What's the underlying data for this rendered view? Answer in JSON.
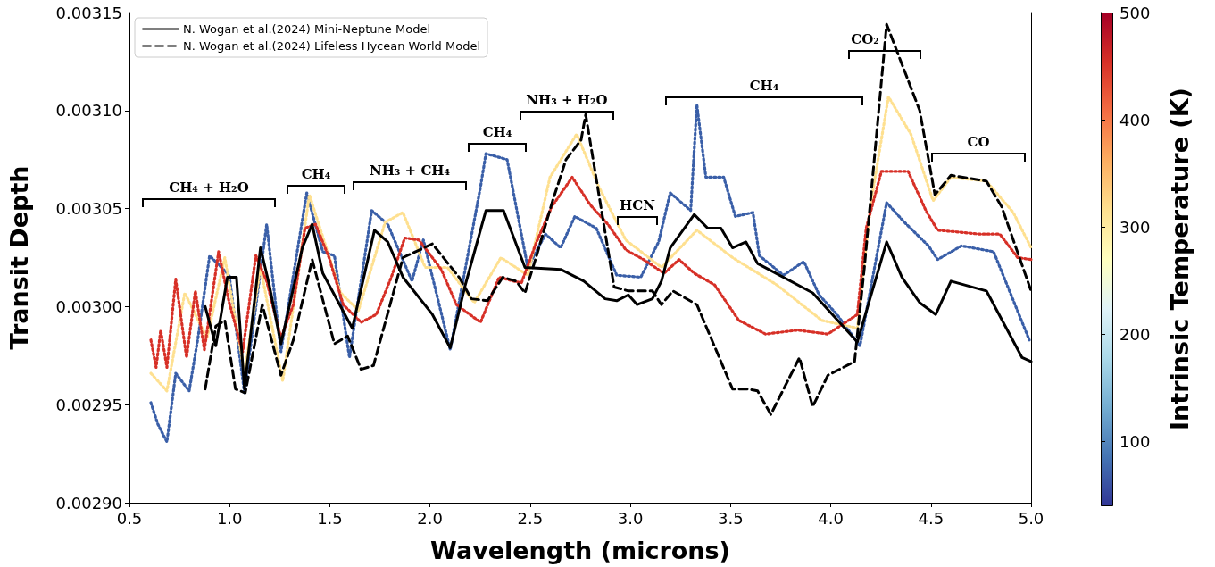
{
  "chart_data": {
    "type": "line",
    "xlabel": "Wavelength (microns)",
    "ylabel": "Transit Depth",
    "clabel": "Intrinsic Temperature (K)",
    "xlim": [
      0.5,
      5.0
    ],
    "xticks": [
      {
        "value": 0.5,
        "label": "0.5"
      },
      {
        "value": 1,
        "label": "1.0"
      },
      {
        "value": 1.5,
        "label": "1.5"
      },
      {
        "value": 2,
        "label": "2.0"
      },
      {
        "value": 2.5,
        "label": "2.5"
      },
      {
        "value": 3,
        "label": "3.0"
      },
      {
        "value": 3.5,
        "label": "3.5"
      },
      {
        "value": 4,
        "label": "4.0"
      },
      {
        "value": 4.5,
        "label": "4.5"
      },
      {
        "value": 5,
        "label": "5.0"
      }
    ],
    "ylim": [
      0.0029,
      0.00315
    ],
    "yticks": [
      {
        "value": 0.0029,
        "label": "0.00290"
      },
      {
        "value": 0.00295,
        "label": "0.00295"
      },
      {
        "value": 0.003,
        "label": "0.00300"
      },
      {
        "value": 0.00305,
        "label": "0.00305"
      },
      {
        "value": 0.0031,
        "label": "0.00310"
      },
      {
        "value": 0.00315,
        "label": "0.00315"
      }
    ],
    "clim": [
      40,
      500
    ],
    "cticks": [
      100,
      200,
      300,
      400,
      500
    ],
    "grid": false,
    "legend": "top left",
    "marker": "none",
    "series": [
      {
        "color": "#3a5fa8",
        "line_style": "dotted",
        "x": [
          0.607,
          0.642,
          0.687,
          0.731,
          0.798,
          0.842,
          0.9,
          0.998,
          1.074,
          1.185,
          1.256,
          1.385,
          1.465,
          1.523,
          1.598,
          1.709,
          1.789,
          1.91,
          1.967,
          2.101,
          2.252,
          2.279,
          2.385,
          2.443,
          2.488,
          2.577,
          2.652,
          2.723,
          2.83,
          2.932,
          3.052,
          3.141,
          3.199,
          3.301,
          3.332,
          3.377,
          3.466,
          3.524,
          3.612,
          3.644,
          3.764,
          3.866,
          3.942,
          4.031,
          4.146,
          4.279,
          4.368,
          4.488,
          4.533,
          4.653,
          4.813,
          4.991
        ],
        "values": [
          0.002951,
          0.00294,
          0.002931,
          0.002966,
          0.002957,
          0.002984,
          0.003026,
          0.003016,
          0.002956,
          0.003042,
          0.002977,
          0.003058,
          0.003028,
          0.003026,
          0.002974,
          0.003049,
          0.003042,
          0.003013,
          0.003034,
          0.002978,
          0.003061,
          0.003078,
          0.003075,
          0.003044,
          0.00302,
          0.003037,
          0.00303,
          0.003046,
          0.00304,
          0.003016,
          0.003015,
          0.003033,
          0.003058,
          0.003049,
          0.003103,
          0.003066,
          0.003066,
          0.003046,
          0.003048,
          0.003026,
          0.003016,
          0.003023,
          0.003006,
          0.002996,
          0.00298,
          0.003053,
          0.003043,
          0.003031,
          0.003024,
          0.003031,
          0.003028,
          0.002983
        ]
      },
      {
        "color": "#fee090",
        "line_style": "dotted",
        "x": [
          0.607,
          0.687,
          0.776,
          0.887,
          0.976,
          1.074,
          1.154,
          1.265,
          1.398,
          1.554,
          1.643,
          1.776,
          1.865,
          1.976,
          2.087,
          2.221,
          2.354,
          2.488,
          2.599,
          2.732,
          2.843,
          2.977,
          3.155,
          3.332,
          3.51,
          3.732,
          3.955,
          4.133,
          4.199,
          4.288,
          4.4,
          4.511,
          4.6,
          4.777,
          4.911,
          5.0
        ],
        "values": [
          0.002966,
          0.002957,
          0.003007,
          0.002984,
          0.003025,
          0.002966,
          0.00302,
          0.002962,
          0.003057,
          0.003007,
          0.002998,
          0.003043,
          0.003048,
          0.00302,
          0.00302,
          0.003002,
          0.003025,
          0.003016,
          0.003066,
          0.003088,
          0.003061,
          0.003034,
          0.00302,
          0.003039,
          0.003025,
          0.003011,
          0.002993,
          0.002989,
          0.003052,
          0.003107,
          0.003088,
          0.003054,
          0.003066,
          0.003064,
          0.003048,
          0.00303
        ]
      },
      {
        "color": "#d73027",
        "line_style": "dotted",
        "x": [
          0.607,
          0.633,
          0.656,
          0.687,
          0.731,
          0.785,
          0.829,
          0.874,
          0.945,
          0.998,
          1.065,
          1.131,
          1.185,
          1.256,
          1.318,
          1.376,
          1.429,
          1.496,
          1.567,
          1.656,
          1.732,
          1.807,
          1.874,
          1.945,
          2.056,
          2.132,
          2.252,
          2.345,
          2.456,
          2.532,
          2.608,
          2.71,
          2.799,
          2.888,
          2.977,
          3.066,
          3.168,
          3.243,
          3.319,
          3.421,
          3.541,
          3.675,
          3.835,
          3.986,
          4.133,
          4.177,
          4.253,
          4.386,
          4.475,
          4.533,
          4.742,
          4.844,
          4.933,
          5.0
        ],
        "values": [
          0.002983,
          0.002969,
          0.002988,
          0.002969,
          0.003014,
          0.002974,
          0.003008,
          0.002978,
          0.003028,
          0.003002,
          0.002977,
          0.003026,
          0.003013,
          0.002984,
          0.003001,
          0.00304,
          0.003042,
          0.003025,
          0.003001,
          0.002992,
          0.002996,
          0.003015,
          0.003035,
          0.003034,
          0.003019,
          0.003001,
          0.002992,
          0.003015,
          0.003012,
          0.003033,
          0.003051,
          0.003066,
          0.003052,
          0.003042,
          0.003029,
          0.003024,
          0.003017,
          0.003024,
          0.003017,
          0.003011,
          0.002993,
          0.002986,
          0.002988,
          0.002986,
          0.002996,
          0.00304,
          0.003069,
          0.003069,
          0.003049,
          0.003039,
          0.003037,
          0.003037,
          0.003025,
          0.003024
        ]
      },
      {
        "name": "N. Wogan et al.(2024) Mini-Neptune Model",
        "color": "#000000",
        "line_style": "solid",
        "x": [
          0.878,
          0.931,
          0.989,
          1.034,
          1.074,
          1.154,
          1.198,
          1.256,
          1.363,
          1.412,
          1.465,
          1.612,
          1.723,
          1.789,
          1.865,
          2.012,
          2.101,
          2.176,
          2.279,
          2.367,
          2.474,
          2.652,
          2.768,
          2.874,
          2.932,
          2.99,
          3.034,
          3.11,
          3.155,
          3.199,
          3.319,
          3.386,
          3.452,
          3.51,
          3.577,
          3.635,
          3.91,
          4.133,
          4.279,
          4.355,
          4.444,
          4.524,
          4.6,
          4.777,
          4.955,
          5.0
        ],
        "values": [
          0.003,
          0.00298,
          0.003015,
          0.003015,
          0.002958,
          0.00303,
          0.003011,
          0.002981,
          0.00303,
          0.003042,
          0.003017,
          0.002989,
          0.003039,
          0.003033,
          0.003015,
          0.002996,
          0.002979,
          0.003011,
          0.003049,
          0.003049,
          0.00302,
          0.003019,
          0.003013,
          0.003004,
          0.003003,
          0.003006,
          0.003001,
          0.003004,
          0.003013,
          0.00303,
          0.003047,
          0.00304,
          0.00304,
          0.00303,
          0.003033,
          0.003022,
          0.003007,
          0.002982,
          0.003033,
          0.003015,
          0.003002,
          0.002996,
          0.003013,
          0.003008,
          0.002974,
          0.002972
        ]
      },
      {
        "name": "N. Wogan et al.(2024) Lifeless Hycean World Model",
        "color": "#000000",
        "line_style": "dashed",
        "x": [
          0.878,
          0.931,
          0.976,
          1.029,
          1.078,
          1.163,
          1.256,
          1.318,
          1.412,
          1.523,
          1.589,
          1.656,
          1.718,
          1.865,
          2.012,
          2.145,
          2.207,
          2.287,
          2.363,
          2.43,
          2.474,
          2.532,
          2.612,
          2.679,
          2.754,
          2.777,
          2.919,
          2.99,
          3.11,
          3.155,
          3.212,
          3.332,
          3.51,
          3.586,
          3.635,
          3.701,
          3.844,
          3.91,
          3.986,
          4.119,
          4.168,
          4.279,
          4.444,
          4.52,
          4.6,
          4.777,
          4.853,
          5.0
        ],
        "values": [
          0.002958,
          0.00299,
          0.002993,
          0.002958,
          0.002956,
          0.003001,
          0.002965,
          0.002983,
          0.003024,
          0.002981,
          0.002985,
          0.002968,
          0.00297,
          0.003025,
          0.003032,
          0.003015,
          0.003004,
          0.003003,
          0.003015,
          0.003013,
          0.003007,
          0.003026,
          0.003054,
          0.003075,
          0.003085,
          0.003098,
          0.00301,
          0.003008,
          0.003008,
          0.003001,
          0.003008,
          0.003001,
          0.002958,
          0.002958,
          0.002957,
          0.002945,
          0.002974,
          0.002949,
          0.002965,
          0.002972,
          0.00302,
          0.003144,
          0.0031,
          0.003057,
          0.003067,
          0.003064,
          0.003051,
          0.003008
        ]
      }
    ],
    "annotations": [
      "CH₄ + H₂O",
      "CH₄",
      "NH₃ + CH₄",
      "CH₄",
      "NH₃ + H₂O",
      "HCN",
      "CH₄",
      "CO₂",
      "CO"
    ]
  }
}
